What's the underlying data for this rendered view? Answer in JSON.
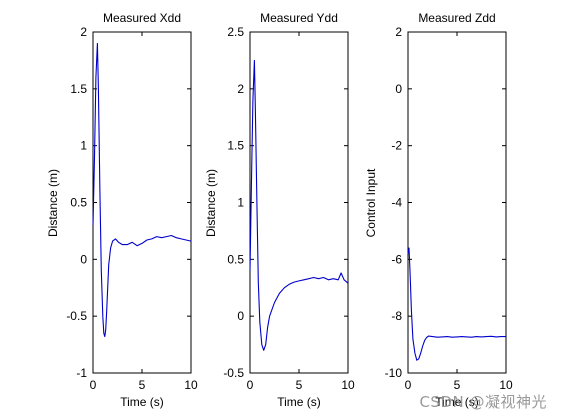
{
  "colors": {
    "background": "#ffffff",
    "line": "#0000cc",
    "axes": "#000000"
  },
  "watermark": "CSDN @凝视神光",
  "chart_data": [
    {
      "type": "line",
      "title": "Measured Xdd",
      "xlabel": "Time (s)",
      "ylabel": "Distance (m)",
      "xlim": [
        0,
        10
      ],
      "ylim": [
        -1,
        2
      ],
      "xticks": [
        0,
        5,
        10
      ],
      "yticks": [
        -1,
        -0.5,
        0,
        0.5,
        1,
        1.5,
        2
      ],
      "grid": false,
      "series": [
        {
          "x": [
            0,
            0.15,
            0.3,
            0.45,
            0.55,
            0.7,
            0.85,
            1.0,
            1.1,
            1.2,
            1.3,
            1.4,
            1.5,
            1.6,
            1.8,
            2.0,
            2.3,
            2.6,
            3.0,
            3.5,
            4.0,
            4.5,
            5.0,
            5.5,
            6.0,
            6.5,
            7.0,
            7.5,
            8.0,
            8.5,
            9.0,
            9.5,
            10.0
          ],
          "values": [
            0.3,
            0.9,
            1.6,
            1.9,
            1.5,
            0.6,
            -0.1,
            -0.5,
            -0.65,
            -0.68,
            -0.62,
            -0.45,
            -0.25,
            -0.05,
            0.1,
            0.16,
            0.18,
            0.15,
            0.13,
            0.13,
            0.15,
            0.12,
            0.14,
            0.17,
            0.18,
            0.2,
            0.19,
            0.2,
            0.21,
            0.19,
            0.18,
            0.17,
            0.16
          ]
        }
      ]
    },
    {
      "type": "line",
      "title": "Measured Ydd",
      "xlabel": "Time (s)",
      "ylabel": "Distance (m)",
      "xlim": [
        0,
        10
      ],
      "ylim": [
        -0.5,
        2.5
      ],
      "xticks": [
        0,
        5,
        10
      ],
      "yticks": [
        -0.5,
        0,
        0.5,
        1,
        1.5,
        2,
        2.5
      ],
      "grid": false,
      "series": [
        {
          "x": [
            0,
            0.15,
            0.3,
            0.45,
            0.55,
            0.7,
            0.85,
            1.0,
            1.2,
            1.4,
            1.6,
            1.8,
            2.0,
            2.5,
            3.0,
            3.5,
            4.0,
            4.5,
            5.0,
            5.5,
            6.0,
            6.5,
            7.0,
            7.5,
            8.0,
            8.5,
            9.0,
            9.3,
            9.6,
            10.0
          ],
          "values": [
            0.4,
            1.2,
            1.9,
            2.25,
            1.8,
            1.0,
            0.3,
            -0.05,
            -0.25,
            -0.3,
            -0.25,
            -0.1,
            0.0,
            0.12,
            0.2,
            0.25,
            0.28,
            0.3,
            0.31,
            0.32,
            0.33,
            0.34,
            0.33,
            0.34,
            0.32,
            0.33,
            0.32,
            0.38,
            0.32,
            0.29
          ]
        }
      ]
    },
    {
      "type": "line",
      "title": "Measured Zdd",
      "xlabel": "Time (s)",
      "ylabel": "Control Input",
      "xlim": [
        0,
        10
      ],
      "ylim": [
        -10,
        2
      ],
      "xticks": [
        0,
        5,
        10
      ],
      "yticks": [
        -10,
        -8,
        -6,
        -4,
        -2,
        0,
        2
      ],
      "grid": false,
      "series": [
        {
          "x": [
            0,
            0.1,
            0.2,
            0.35,
            0.5,
            0.7,
            0.9,
            1.1,
            1.3,
            1.5,
            1.7,
            1.9,
            2.1,
            2.5,
            3.0,
            3.5,
            4.0,
            4.5,
            5.0,
            5.5,
            6.0,
            6.5,
            7.0,
            7.5,
            8.0,
            8.5,
            9.0,
            9.5,
            10.0
          ],
          "values": [
            -5.8,
            -5.6,
            -6.4,
            -7.8,
            -8.8,
            -9.3,
            -9.55,
            -9.5,
            -9.3,
            -9.05,
            -8.85,
            -8.75,
            -8.7,
            -8.72,
            -8.74,
            -8.73,
            -8.72,
            -8.74,
            -8.73,
            -8.72,
            -8.73,
            -8.74,
            -8.72,
            -8.73,
            -8.72,
            -8.71,
            -8.73,
            -8.72,
            -8.72
          ]
        }
      ]
    }
  ]
}
